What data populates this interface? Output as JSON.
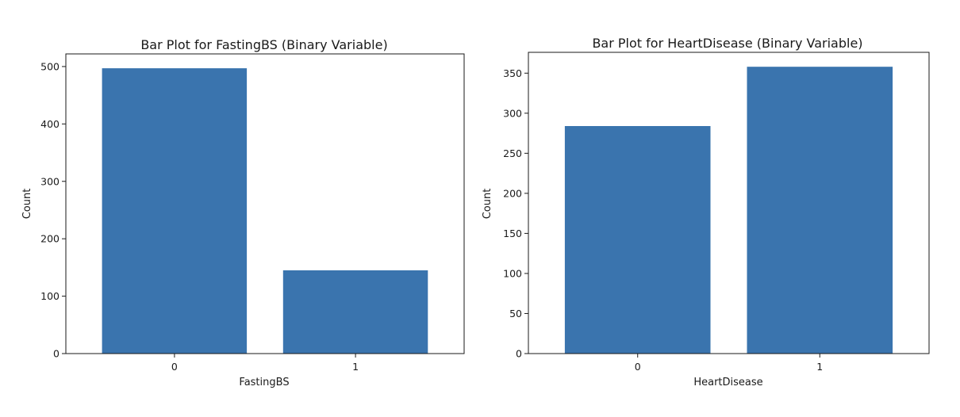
{
  "chart_data": [
    {
      "type": "bar",
      "title": "Bar Plot for FastingBS (Binary Variable)",
      "xlabel": "FastingBS",
      "ylabel": "Count",
      "categories": [
        "0",
        "1"
      ],
      "values": [
        497,
        145
      ],
      "ylim": [
        0,
        522
      ],
      "yticks": [
        0,
        100,
        200,
        300,
        400,
        500
      ],
      "bar_color": "#3a74ae",
      "grid": false
    },
    {
      "type": "bar",
      "title": "Bar Plot for HeartDisease (Binary Variable)",
      "xlabel": "HeartDisease",
      "ylabel": "Count",
      "categories": [
        "0",
        "1"
      ],
      "values": [
        284,
        358
      ],
      "ylim": [
        0,
        376
      ],
      "yticks": [
        0,
        50,
        100,
        150,
        200,
        250,
        300,
        350
      ],
      "bar_color": "#3a74ae",
      "grid": false
    }
  ]
}
